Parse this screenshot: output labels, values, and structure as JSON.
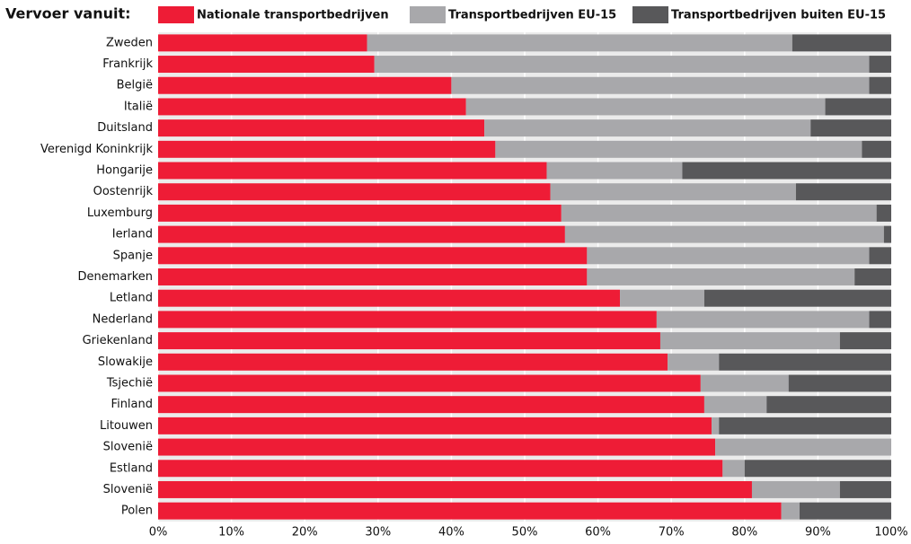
{
  "chart_data": {
    "type": "stacked-barh",
    "legend_title": "Vervoer vanuit:",
    "categories": [
      "Zweden",
      "Frankrijk",
      "België",
      "Italië",
      "Duitsland",
      "Verenigd Koninkrijk",
      "Hongarije",
      "Oostenrijk",
      "Luxemburg",
      "Ierland",
      "Spanje",
      "Denemarken",
      "Letland",
      "Nederland",
      "Griekenland",
      "Slowakije",
      "Tsjechië",
      "Finland",
      "Litouwen",
      "Slovenië",
      "Estland",
      "Slovenië",
      "Polen"
    ],
    "series": [
      {
        "name": "Nationale transportbedrijven",
        "color": "#ee1c36",
        "values": [
          28.5,
          29.5,
          40,
          42,
          44.5,
          46,
          53,
          53.5,
          55,
          55.5,
          58.5,
          58.5,
          63,
          68,
          68.5,
          69.5,
          74,
          74.5,
          75.5,
          76,
          77,
          81,
          85
        ]
      },
      {
        "name": "Transportbedrijven EU-15",
        "color": "#a8a8ab",
        "values": [
          58,
          67.5,
          57,
          49,
          44.5,
          50,
          18.5,
          33.5,
          43,
          43.5,
          38.5,
          36.5,
          11.5,
          29,
          24.5,
          7,
          12,
          8.5,
          1,
          24,
          3,
          12,
          2.5
        ]
      },
      {
        "name": "Transportbedrijven buiten EU-15",
        "color": "#58585a",
        "values": [
          13.5,
          3,
          3,
          9,
          11,
          4,
          28.5,
          13,
          2,
          1,
          3,
          5,
          25.5,
          3,
          7,
          23.5,
          14,
          17,
          23.5,
          0,
          20,
          7,
          12.5
        ]
      }
    ],
    "xlim": [
      0,
      100
    ],
    "xticks": [
      {
        "value": 0,
        "label": "0%"
      },
      {
        "value": 10,
        "label": "10%"
      },
      {
        "value": 20,
        "label": "20%"
      },
      {
        "value": 30,
        "label": "30%"
      },
      {
        "value": 40,
        "label": "40%"
      },
      {
        "value": 50,
        "label": "50%"
      },
      {
        "value": 60,
        "label": "60%"
      },
      {
        "value": 70,
        "label": "70%"
      },
      {
        "value": 80,
        "label": "80%"
      },
      {
        "value": 90,
        "label": "90%"
      },
      {
        "value": 100,
        "label": "100%"
      }
    ],
    "grid": true
  }
}
